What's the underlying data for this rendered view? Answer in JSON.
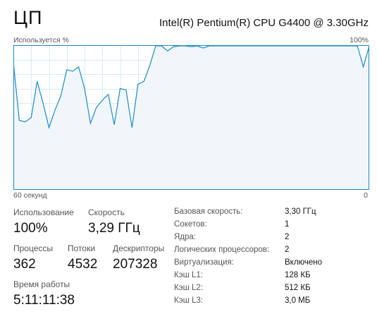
{
  "header": {
    "title": "ЦП",
    "cpu_name": "Intel(R) Pentium(R) CPU G4400 @ 3.30GHz"
  },
  "graph": {
    "label_left": "Используется %",
    "label_right": "100%",
    "axis_left": "60 секунд",
    "axis_right": "0",
    "line_color": "#1b8bc6",
    "fill_color": "#f1f6fa",
    "grid_color": "#d9eaf4"
  },
  "chart_data": {
    "type": "area",
    "x": [
      60,
      59,
      58,
      57,
      56,
      55,
      54,
      53,
      52,
      51,
      50,
      49,
      48,
      47,
      46,
      45,
      44,
      43,
      42,
      41,
      40,
      39,
      38,
      37,
      36,
      35,
      34,
      33,
      32,
      31,
      30,
      29,
      28,
      27,
      26,
      25,
      24,
      23,
      22,
      21,
      20,
      19,
      18,
      17,
      16,
      15,
      14,
      13,
      12,
      11,
      10,
      9,
      8,
      7,
      6,
      5,
      4,
      3,
      2,
      1,
      0
    ],
    "values": [
      88,
      48,
      47,
      50,
      75,
      60,
      43,
      55,
      65,
      83,
      82,
      85,
      70,
      46,
      57,
      62,
      66,
      45,
      70,
      69,
      43,
      73,
      75,
      86,
      100,
      100,
      96,
      99,
      100,
      100,
      99,
      100,
      98,
      100,
      100,
      100,
      100,
      100,
      100,
      100,
      100,
      100,
      100,
      100,
      100,
      100,
      100,
      100,
      100,
      100,
      100,
      100,
      100,
      100,
      100,
      100,
      100,
      100,
      100,
      85,
      100
    ],
    "ylim": [
      0,
      100
    ],
    "grid": true
  },
  "stats": {
    "usage_label": "Использование",
    "usage_value": "100%",
    "speed_label": "Скорость",
    "speed_value": "3,29 ГГц",
    "processes_label": "Процессы",
    "processes_value": "362",
    "threads_label": "Потоки",
    "threads_value": "4532",
    "handles_label": "Дескрипторы",
    "handles_value": "207328",
    "uptime_label": "Время работы",
    "uptime_value": "5:11:11:38"
  },
  "info": [
    {
      "label": "Базовая скорость:",
      "value": "3,30 ГГц"
    },
    {
      "label": "Сокетов:",
      "value": "1"
    },
    {
      "label": "Ядра:",
      "value": "2"
    },
    {
      "label": "Логических процессоров:",
      "value": "2"
    },
    {
      "label": "Виртуализация:",
      "value": "Включено"
    },
    {
      "label": "Кэш L1:",
      "value": "128 КБ"
    },
    {
      "label": "Кэш L2:",
      "value": "512 КБ"
    },
    {
      "label": "Кэш L3:",
      "value": "3,0 МБ"
    }
  ]
}
